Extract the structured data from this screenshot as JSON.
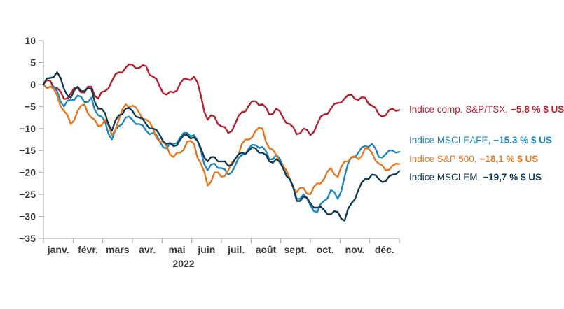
{
  "page": {
    "background": "#ffffff"
  },
  "chart_data": {
    "type": "line",
    "title": "",
    "x_axis": {
      "months": [
        "janv.",
        "févr.",
        "mars",
        "avr.",
        "mai",
        "juin",
        "juil.",
        "août",
        "sept.",
        "oct.",
        "nov.",
        "déc."
      ],
      "year_label": "2022",
      "domain": [
        "janv. 2022",
        "déc. 2022"
      ]
    },
    "y_axis": {
      "min": -35,
      "max": 10,
      "step": 5,
      "unit": "%"
    },
    "legend_position": "right",
    "grid": false,
    "axis_color": "#a8a8a8",
    "series": [
      {
        "name": "Indice comp. S&P/TSX",
        "legend_label": "Indice comp. S&P/TSX,",
        "legend_value": "−5,8 % $ US",
        "final_value": -5.8,
        "color": "#b2222e",
        "legend_top": 149,
        "values": [
          0.0,
          1.0,
          0.8,
          -0.7,
          -0.8,
          -1.6,
          -3.3,
          -3.2,
          -2.0,
          -0.8,
          -0.8,
          -1.8,
          -1.8,
          -0.5,
          -0.5,
          -2.6,
          -3.2,
          -1.7,
          -1.5,
          -0.9,
          0.8,
          2.3,
          2.8,
          2.7,
          3.8,
          4.6,
          4.5,
          3.7,
          3.8,
          4.4,
          4.2,
          2.2,
          1.8,
          1.3,
          -0.5,
          -2.0,
          -2.3,
          -1.6,
          -1.8,
          -1.4,
          0.3,
          1.3,
          1.2,
          1.0,
          1.8,
          0.5,
          -2.5,
          -6.2,
          -8.0,
          -7.0,
          -7.3,
          -9.0,
          -9.5,
          -9.7,
          -11.0,
          -10.6,
          -9.0,
          -7.1,
          -6.3,
          -6.1,
          -4.8,
          -3.8,
          -3.8,
          -4.7,
          -4.5,
          -5.2,
          -6.8,
          -6.7,
          -5.5,
          -6.0,
          -7.5,
          -8.8,
          -9.0,
          -9.7,
          -11.3,
          -11.1,
          -10.0,
          -10.3,
          -11.5,
          -10.8,
          -9.0,
          -7.3,
          -6.8,
          -6.7,
          -5.5,
          -4.4,
          -4.2,
          -4.1,
          -3.2,
          -2.4,
          -2.3,
          -3.3,
          -3.5,
          -2.9,
          -3.0,
          -4.4,
          -4.8,
          -5.3,
          -6.8,
          -7.3,
          -7.0,
          -5.8,
          -5.5,
          -6.0,
          -5.8
        ]
      },
      {
        "name": "Indice MSCI EAFE",
        "legend_label": "Indice MSCI EAFE,",
        "legend_value": "−15.3 % $ US",
        "final_value": -15.3,
        "color": "#1f87bd",
        "legend_top": 193,
        "values": [
          0.0,
          -0.8,
          -0.5,
          -0.5,
          -1.5,
          -3.9,
          -5.0,
          -3.7,
          -3.5,
          -3.5,
          -2.5,
          -2.8,
          -4.0,
          -4.0,
          -3.0,
          -5.8,
          -7.0,
          -7.3,
          -8.5,
          -11.2,
          -12.5,
          -10.3,
          -9.5,
          -9.0,
          -7.5,
          -7.3,
          -8.0,
          -9.0,
          -9.0,
          -9.3,
          -10.5,
          -11.3,
          -11.0,
          -11.5,
          -13.0,
          -14.3,
          -14.5,
          -13.4,
          -13.5,
          -13.3,
          -12.0,
          -11.0,
          -11.0,
          -11.8,
          -11.5,
          -12.7,
          -15.0,
          -18.2,
          -19.5,
          -18.2,
          -18.0,
          -19.0,
          -19.0,
          -19.3,
          -20.5,
          -20.0,
          -18.5,
          -16.7,
          -16.0,
          -15.8,
          -14.5,
          -13.7,
          -13.8,
          -14.4,
          -14.2,
          -15.1,
          -17.0,
          -17.0,
          -16.0,
          -16.8,
          -18.5,
          -20.7,
          -21.5,
          -23.2,
          -26.0,
          -26.0,
          -25.0,
          -25.8,
          -27.5,
          -28.8,
          -29.0,
          -27.2,
          -26.5,
          -25.9,
          -24.0,
          -24.5,
          -26.0,
          -24.3,
          -21.0,
          -18.0,
          -16.5,
          -16.5,
          -15.5,
          -14.3,
          -14.0,
          -14.2,
          -13.5,
          -14.5,
          -16.5,
          -16.6,
          -15.8,
          -15.0,
          -15.0,
          -15.5,
          -15.3
        ]
      },
      {
        "name": "Indice S&P 500",
        "legend_label": "Indice S&P 500,",
        "legend_value": "−18,1 % $ US",
        "final_value": -18.1,
        "color": "#e87722",
        "legend_top": 220,
        "values": [
          0.0,
          -0.9,
          -0.5,
          -1.0,
          -2.5,
          -5.0,
          -6.0,
          -6.9,
          -9.0,
          -8.1,
          -6.0,
          -4.8,
          -4.5,
          -6.6,
          -7.5,
          -8.0,
          -9.5,
          -9.3,
          -8.0,
          -9.3,
          -11.5,
          -10.4,
          -8.0,
          -5.8,
          -4.5,
          -5.2,
          -4.8,
          -5.2,
          -6.5,
          -7.8,
          -8.0,
          -8.5,
          -10.0,
          -12.1,
          -13.0,
          -12.9,
          -14.0,
          -15.9,
          -16.5,
          -15.5,
          -15.5,
          -14.8,
          -13.0,
          -12.8,
          -13.5,
          -16.6,
          -18.0,
          -19.9,
          -23.0,
          -22.1,
          -20.0,
          -20.0,
          -21.0,
          -20.8,
          -19.5,
          -17.8,
          -17.0,
          -15.9,
          -13.5,
          -12.5,
          -12.5,
          -12.0,
          -10.5,
          -9.8,
          -10.0,
          -13.0,
          -14.5,
          -14.8,
          -16.0,
          -17.8,
          -18.5,
          -19.5,
          -21.5,
          -23.5,
          -24.5,
          -23.5,
          -23.5,
          -24.8,
          -25.0,
          -23.3,
          -22.5,
          -22.5,
          -21.5,
          -19.8,
          -19.0,
          -20.5,
          -21.0,
          -18.7,
          -17.5,
          -17.5,
          -16.5,
          -16.3,
          -17.0,
          -16.3,
          -14.5,
          -14.6,
          -15.5,
          -17.3,
          -18.0,
          -18.4,
          -19.5,
          -19.4,
          -18.5,
          -18.0,
          -18.1
        ]
      },
      {
        "name": "Indice MSCI EM",
        "legend_label": "Indice MSCI EM,",
        "legend_value": "−19,7 % $ US",
        "final_value": -19.7,
        "color": "#123a52",
        "legend_top": 246,
        "values": [
          0.0,
          1.4,
          1.5,
          1.7,
          2.8,
          1.5,
          -1.0,
          -2.5,
          -3.0,
          -1.3,
          -0.5,
          -1.5,
          -1.5,
          -0.8,
          -1.0,
          -4.0,
          -5.5,
          -5.5,
          -6.5,
          -9.1,
          -10.5,
          -8.2,
          -7.0,
          -6.8,
          -5.5,
          -5.3,
          -6.0,
          -7.3,
          -7.5,
          -7.8,
          -9.0,
          -10.0,
          -10.0,
          -10.3,
          -11.5,
          -13.0,
          -13.5,
          -13.3,
          -14.0,
          -13.8,
          -12.5,
          -11.5,
          -11.5,
          -12.3,
          -12.0,
          -12.8,
          -14.5,
          -16.6,
          -17.5,
          -16.5,
          -16.5,
          -17.5,
          -17.5,
          -17.5,
          -18.5,
          -18.3,
          -17.0,
          -15.8,
          -15.5,
          -15.8,
          -15.0,
          -14.3,
          -14.5,
          -15.5,
          -15.5,
          -16.0,
          -17.5,
          -17.8,
          -17.0,
          -17.5,
          -19.0,
          -20.8,
          -21.5,
          -23.4,
          -26.5,
          -26.5,
          -25.5,
          -25.8,
          -27.0,
          -28.0,
          -28.0,
          -27.8,
          -28.5,
          -29.5,
          -29.5,
          -28.8,
          -29.0,
          -30.5,
          -31.0,
          -28.3,
          -27.0,
          -26.1,
          -24.0,
          -22.3,
          -21.5,
          -21.5,
          -20.5,
          -20.6,
          -21.5,
          -22.2,
          -22.0,
          -20.9,
          -20.5,
          -20.4,
          -19.7
        ]
      }
    ]
  }
}
